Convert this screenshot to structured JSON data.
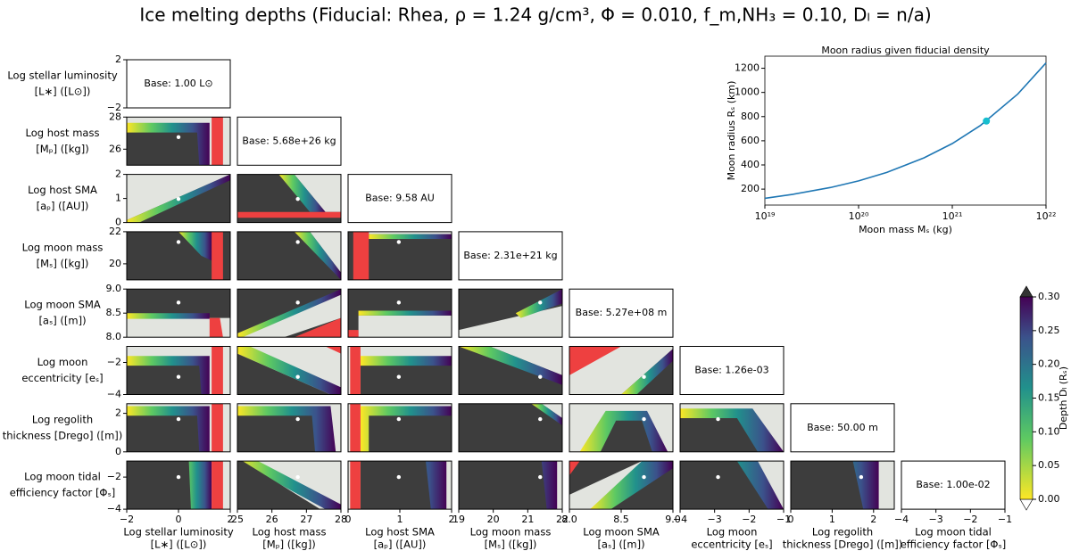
{
  "title": "Ice melting depths (Fiducial: Rhea, ρ = 1.24 g/cm³, Φ = 0.010, f_m,NH₃ = 0.10, Dₗ = n/a)",
  "chart_data": [
    {
      "type": "heatmap",
      "params": [
        {
          "label": [
            "Log stellar luminosity",
            "[L∗] ([L⊙])"
          ],
          "lim": [
            -2,
            2
          ],
          "xticks": [
            {
              "value": -2,
              "label": "−2"
            },
            0,
            2
          ],
          "yticks": [
            {
              "value": -2,
              "label": "−2"
            },
            2
          ],
          "base": "Base: 1.00 L⊙"
        },
        {
          "label": [
            "Log host mass",
            "[Mₚ] ([kg])"
          ],
          "lim": [
            25,
            28
          ],
          "xticks": [
            25,
            26,
            27,
            28
          ],
          "yticks": [
            26,
            28
          ],
          "base": "Base: 5.68e+26 kg"
        },
        {
          "label": [
            "Log host SMA",
            "[aₚ] ([AU])"
          ],
          "lim": [
            0,
            2
          ],
          "xticks": [
            0,
            1,
            2
          ],
          "yticks": [
            0,
            1,
            2
          ],
          "base": "Base: 9.58 AU"
        },
        {
          "label": [
            "Log moon mass",
            "[Mₛ] ([kg])"
          ],
          "lim": [
            19,
            22
          ],
          "xticks": [
            19,
            20,
            21,
            22
          ],
          "yticks": [
            20,
            22
          ],
          "base": "Base: 2.31e+21 kg"
        },
        {
          "label": [
            "Log moon SMA",
            "[aₛ] ([m])"
          ],
          "lim": [
            8,
            9
          ],
          "xticks": [
            {
              "value": 8,
              "label": "8.0"
            },
            8.5,
            {
              "value": 9,
              "label": "9.0"
            }
          ],
          "yticks": [
            {
              "value": 8,
              "label": "8.0"
            },
            8.5,
            {
              "value": 9,
              "label": "9.0"
            }
          ],
          "base": "Base: 5.27e+08 m"
        },
        {
          "label": [
            "Log moon",
            "eccentricity [eₛ]"
          ],
          "lim": [
            -4,
            -1
          ],
          "xticks": [
            {
              "value": -4,
              "label": "−4"
            },
            {
              "value": -3,
              "label": "−3"
            },
            {
              "value": -2,
              "label": "−2"
            },
            {
              "value": -1,
              "label": "−1"
            }
          ],
          "yticks": [
            {
              "value": -4,
              "label": "−4"
            },
            {
              "value": -2,
              "label": "−2"
            }
          ],
          "base": "Base: 1.26e-03"
        },
        {
          "label": [
            "Log regolith",
            "thickness [Drego] ([m])"
          ],
          "lim": [
            0,
            2.5
          ],
          "xticks": [
            0,
            1,
            2
          ],
          "yticks": [
            0,
            2
          ],
          "base": "Base: 50.00 m"
        },
        {
          "label": [
            "Log moon tidal",
            "efficiency factor [Φₛ]"
          ],
          "lim": [
            -4,
            -1
          ],
          "xticks": [
            {
              "value": -4,
              "label": "−4"
            },
            {
              "value": -3,
              "label": "−3"
            },
            {
              "value": -2,
              "label": "−2"
            },
            {
              "value": -1,
              "label": "−1"
            }
          ],
          "yticks": [
            {
              "value": -4,
              "label": "−4"
            },
            {
              "value": -2,
              "label": "−2"
            }
          ],
          "base": "Base: 1.00e-02"
        }
      ],
      "fiducial": [
        0,
        26.75,
        0.98,
        21.36,
        8.72,
        -2.9,
        1.7,
        -2
      ],
      "colorbar": {
        "label": "Depth Dₗ (Rₛ)",
        "lim": [
          0,
          0.3
        ],
        "ticks": [
          {
            "value": 0,
            "label": "0.00"
          },
          {
            "value": 0.05,
            "label": "0.05"
          },
          {
            "value": 0.1,
            "label": "0.10"
          },
          {
            "value": 0.15,
            "label": "0.15"
          },
          {
            "value": 0.2,
            "label": "0.20"
          },
          {
            "value": 0.25,
            "label": "0.25"
          },
          {
            "value": 0.3,
            "label": "0.30"
          }
        ]
      }
    },
    {
      "type": "line",
      "title": "Moon radius given fiducial density",
      "xlabel": "Moon mass Mₛ (kg)",
      "ylabel": "Moon radius Rₛ (km)",
      "xscale": "log",
      "xlim": [
        1e+19,
        1e+22
      ],
      "xticks": [
        {
          "value": 1e+19,
          "label": "10¹⁹"
        },
        {
          "value": 1e+20,
          "label": "10²⁰"
        },
        {
          "value": 1e+21,
          "label": "10²¹"
        },
        {
          "value": 1e+22,
          "label": "10²²"
        }
      ],
      "ylim": [
        68,
        1300
      ],
      "yticks": [
        200,
        400,
        600,
        800,
        1000,
        1200
      ],
      "x": [
        1e+19,
        2e+19,
        5e+19,
        1e+20,
        2e+20,
        5e+20,
        1e+21,
        2e+21,
        5e+21,
        1e+22
      ],
      "series": [
        {
          "color": "#1f77b4",
          "values": [
            124,
            157,
            213,
            268,
            338,
            459,
            577,
            727,
            987,
            1244
          ]
        }
      ],
      "marker": {
        "x": 2.31e+21,
        "y": 763,
        "color": "#17becf"
      }
    }
  ]
}
